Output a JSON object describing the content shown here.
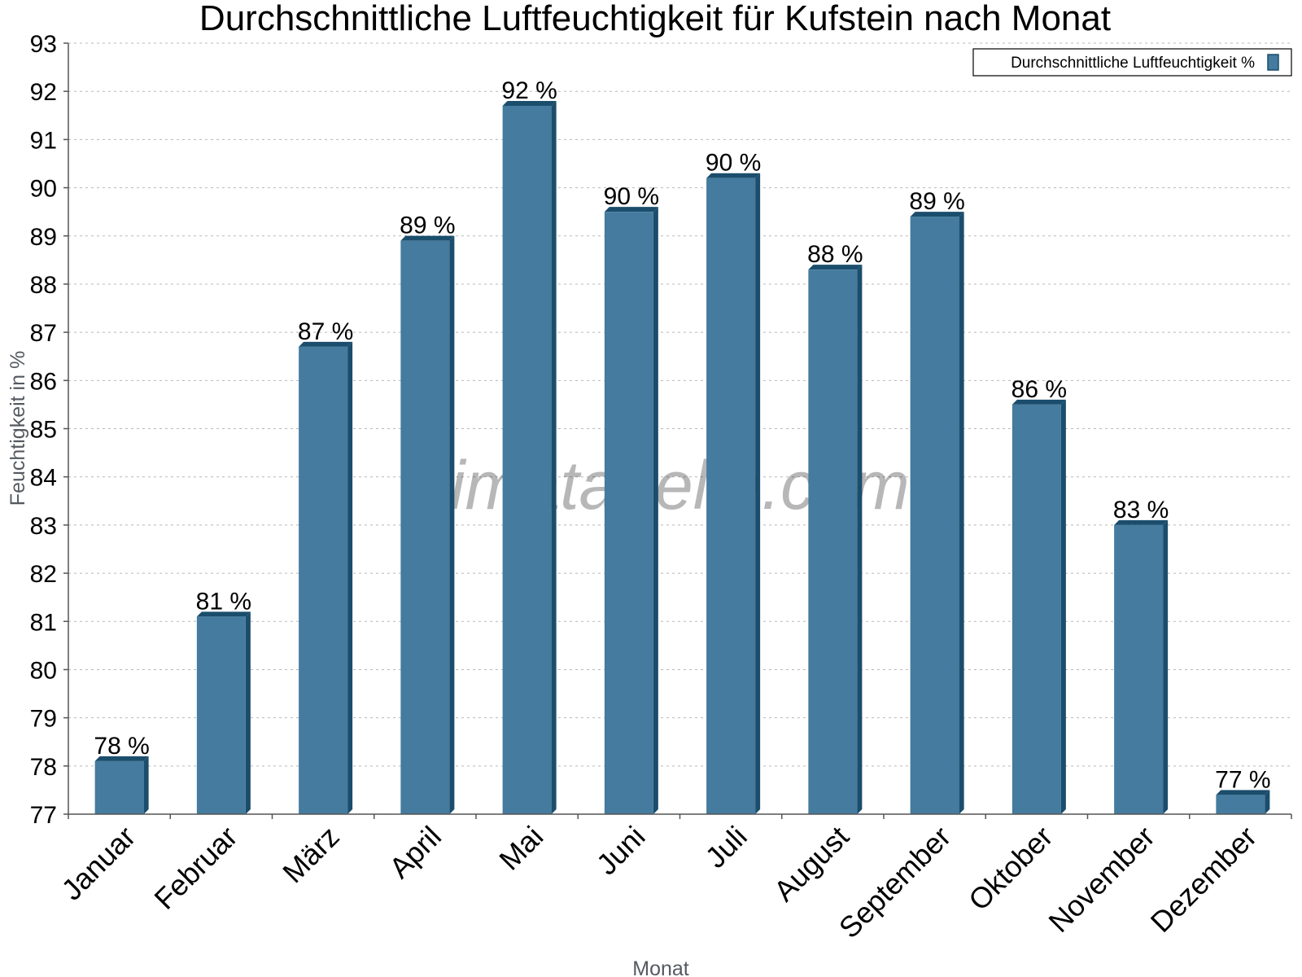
{
  "chart_data": {
    "type": "bar",
    "title": "Durchschnittliche Luftfeuchtigkeit für Kufstein nach Monat",
    "xlabel": "Monat",
    "ylabel": "Feuchtigkeit in %",
    "ylim": [
      77,
      93
    ],
    "yticks": [
      77,
      78,
      79,
      80,
      81,
      82,
      83,
      84,
      85,
      86,
      87,
      88,
      89,
      90,
      91,
      92,
      93
    ],
    "grid": true,
    "legend_position": "top-right",
    "categories": [
      "Januar",
      "Februar",
      "März",
      "April",
      "Mai",
      "Juni",
      "Juli",
      "August",
      "September",
      "Oktober",
      "November",
      "Dezember"
    ],
    "series": [
      {
        "name": "Durchschnittliche Luftfeuchtigkeit %",
        "values": [
          78.1,
          81.1,
          86.7,
          88.9,
          91.7,
          89.5,
          90.2,
          88.3,
          89.4,
          85.5,
          83.0,
          77.4
        ],
        "data_labels": [
          "78 %",
          "81 %",
          "87 %",
          "89 %",
          "92 %",
          "90 %",
          "90 %",
          "88 %",
          "89 %",
          "86 %",
          "83 %",
          "77 %"
        ],
        "color": "#447b9e",
        "side_color": "#1b4d6c"
      }
    ],
    "watermark": "klimatabelle.com"
  }
}
